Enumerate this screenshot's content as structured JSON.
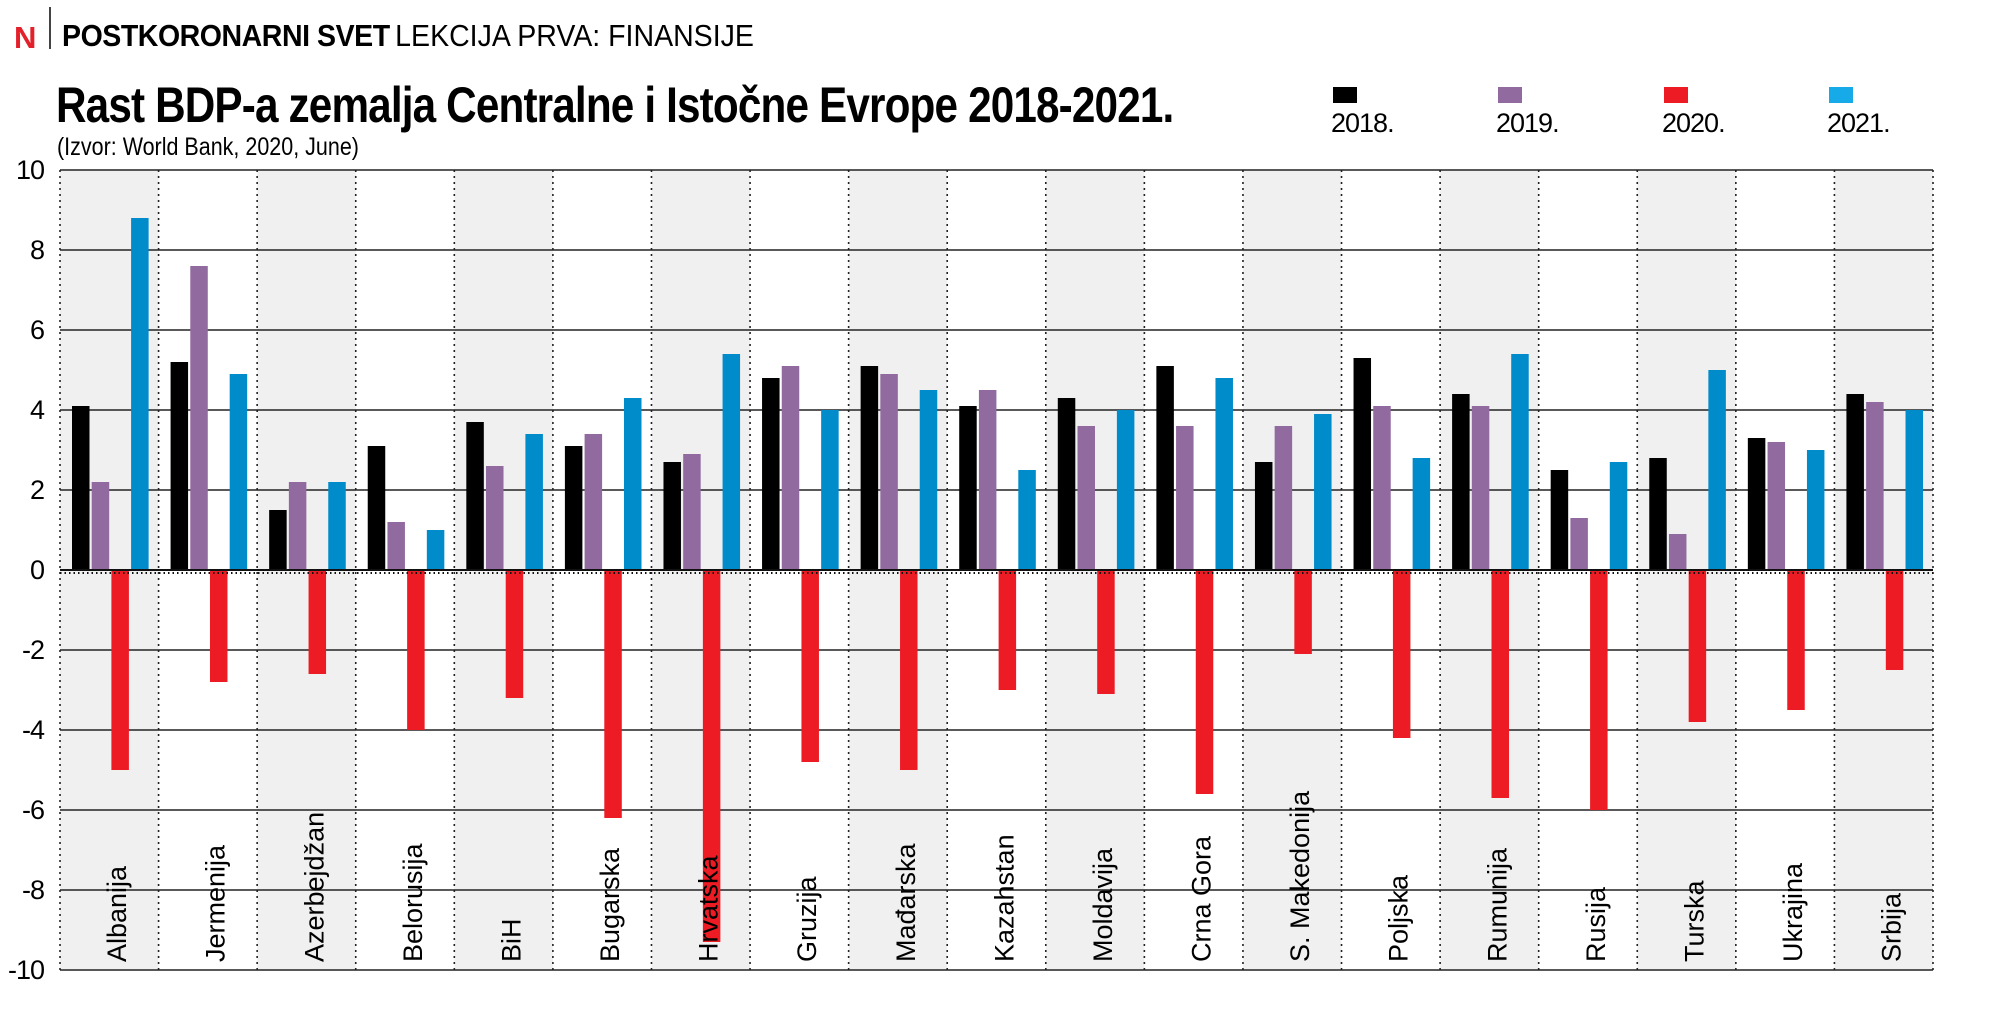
{
  "header": {
    "logo": "N",
    "series_title": "POSTKORONARNI SVET",
    "lesson": "LEKCIJA PRVA: FINANSIJE"
  },
  "colors": {
    "2018": "#000000",
    "2019": "#916ba0",
    "2020": "#ed1c24",
    "2021": "#008bcb",
    "legend_2021": "#16aae8",
    "column_shade": "#f0f0f0",
    "logo": "#e4202a"
  },
  "chart_data": {
    "type": "bar",
    "title": "Rast BDP-a zemalja Centralne i Istočne Evrope 2018-2021.",
    "subtitle": "(Izvor: World Bank, 2020, June)",
    "xlabel": "",
    "ylabel": "",
    "ylim": [
      -10,
      10
    ],
    "yticks": [
      10,
      8,
      6,
      4,
      2,
      0,
      -2,
      -4,
      -6,
      -8,
      -10
    ],
    "grid": true,
    "legend_position": "top-right",
    "categories": [
      "Albanija",
      "Jermenija",
      "Azerbejdžan",
      "Belorusija",
      "BiH",
      "Bugarska",
      "Hrvatska",
      "Gruzija",
      "Mađarska",
      "Kazahstan",
      "Moldavija",
      "Crna Gora",
      "S. Makedonija",
      "Poljska",
      "Rumunija",
      "Rusija",
      "Turska",
      "Ukrajina",
      "Srbija"
    ],
    "series": [
      {
        "name": "2018.",
        "key": "2018",
        "values": [
          4.1,
          5.2,
          1.5,
          3.1,
          3.7,
          3.1,
          2.7,
          4.8,
          5.1,
          4.1,
          4.3,
          5.1,
          2.7,
          5.3,
          4.4,
          2.5,
          2.8,
          3.3,
          4.4
        ]
      },
      {
        "name": "2019.",
        "key": "2019",
        "values": [
          2.2,
          7.6,
          2.2,
          1.2,
          2.6,
          3.4,
          2.9,
          5.1,
          4.9,
          4.5,
          3.6,
          3.6,
          3.6,
          4.1,
          4.1,
          1.3,
          0.9,
          3.2,
          4.2
        ]
      },
      {
        "name": "2020.",
        "key": "2020",
        "values": [
          -5.0,
          -2.8,
          -2.6,
          -4.0,
          -3.2,
          -6.2,
          -9.3,
          -4.8,
          -5.0,
          -3.0,
          -3.1,
          -5.6,
          -2.1,
          -4.2,
          -5.7,
          -6.0,
          -3.8,
          -3.5,
          -2.5
        ]
      },
      {
        "name": "2021.",
        "key": "2021",
        "values": [
          8.8,
          4.9,
          2.2,
          1.0,
          3.4,
          4.3,
          5.4,
          4.0,
          4.5,
          2.5,
          4.0,
          4.8,
          3.9,
          2.8,
          5.4,
          2.7,
          5.0,
          3.0,
          4.0
        ]
      }
    ]
  }
}
